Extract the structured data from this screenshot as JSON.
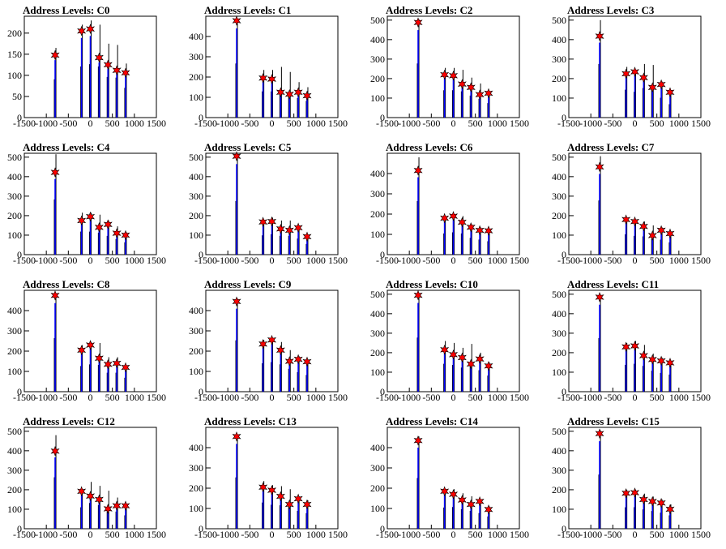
{
  "chart_data": [
    {
      "type": "bar",
      "title": "Address Levels: C0",
      "xlim": [
        -1500,
        1500
      ],
      "ylim": [
        0,
        240
      ],
      "yticks": [
        0,
        50,
        100,
        150,
        200
      ],
      "xticks": [
        -1500,
        -1000,
        -500,
        0,
        500,
        1000,
        1500
      ],
      "peaks": [
        {
          "x": -800,
          "hist": 165,
          "fit": 148
        },
        {
          "x": -200,
          "hist": 220,
          "fit": 205
        },
        {
          "x": 0,
          "hist": 230,
          "fit": 210
        },
        {
          "x": 200,
          "hist": 220,
          "fit": 142
        },
        {
          "x": 400,
          "hist": 175,
          "fit": 125
        },
        {
          "x": 600,
          "hist": 172,
          "fit": 112
        },
        {
          "x": 800,
          "hist": 128,
          "fit": 106
        }
      ]
    },
    {
      "type": "bar",
      "title": "Address Levels: C1",
      "xlim": [
        -1500,
        1500
      ],
      "ylim": [
        0,
        500
      ],
      "yticks": [
        0,
        100,
        200,
        300,
        400
      ],
      "xticks": [
        -1500,
        -1000,
        -500,
        0,
        500,
        1000,
        1500
      ],
      "peaks": [
        {
          "x": -800,
          "hist": 485,
          "fit": 478
        },
        {
          "x": -200,
          "hist": 235,
          "fit": 195
        },
        {
          "x": 0,
          "hist": 235,
          "fit": 190
        },
        {
          "x": 200,
          "hist": 250,
          "fit": 125
        },
        {
          "x": 400,
          "hist": 225,
          "fit": 115
        },
        {
          "x": 600,
          "hist": 175,
          "fit": 125
        },
        {
          "x": 800,
          "hist": 150,
          "fit": 108
        }
      ]
    },
    {
      "type": "bar",
      "title": "Address Levels: C2",
      "xlim": [
        -1500,
        1500
      ],
      "ylim": [
        0,
        520
      ],
      "yticks": [
        0,
        100,
        200,
        300,
        400,
        500
      ],
      "xticks": [
        -1500,
        -1000,
        -500,
        0,
        500,
        1000,
        1500
      ],
      "peaks": [
        {
          "x": -800,
          "hist": 505,
          "fit": 488
        },
        {
          "x": -200,
          "hist": 255,
          "fit": 220
        },
        {
          "x": 0,
          "hist": 255,
          "fit": 215
        },
        {
          "x": 200,
          "hist": 245,
          "fit": 172
        },
        {
          "x": 400,
          "hist": 205,
          "fit": 155
        },
        {
          "x": 600,
          "hist": 175,
          "fit": 118
        },
        {
          "x": 800,
          "hist": 135,
          "fit": 125
        }
      ]
    },
    {
      "type": "bar",
      "title": "Address Levels: C3",
      "xlim": [
        -1500,
        1500
      ],
      "ylim": [
        0,
        520
      ],
      "yticks": [
        0,
        100,
        200,
        300,
        400,
        500
      ],
      "xticks": [
        -1500,
        -1000,
        -500,
        0,
        500,
        1000,
        1500
      ],
      "peaks": [
        {
          "x": -800,
          "hist": 500,
          "fit": 418
        },
        {
          "x": -200,
          "hist": 260,
          "fit": 225
        },
        {
          "x": 0,
          "hist": 240,
          "fit": 235
        },
        {
          "x": 200,
          "hist": 275,
          "fit": 205
        },
        {
          "x": 400,
          "hist": 270,
          "fit": 155
        },
        {
          "x": 600,
          "hist": 185,
          "fit": 170
        },
        {
          "x": 800,
          "hist": 125,
          "fit": 130
        }
      ]
    },
    {
      "type": "bar",
      "title": "Address Levels: C4",
      "xlim": [
        -1500,
        1500
      ],
      "ylim": [
        0,
        520
      ],
      "yticks": [
        0,
        100,
        200,
        300,
        400,
        500
      ],
      "xticks": [
        -1500,
        -1000,
        -500,
        0,
        500,
        1000,
        1500
      ],
      "peaks": [
        {
          "x": -800,
          "hist": 515,
          "fit": 422
        },
        {
          "x": -200,
          "hist": 215,
          "fit": 175
        },
        {
          "x": 0,
          "hist": 215,
          "fit": 195
        },
        {
          "x": 200,
          "hist": 205,
          "fit": 140
        },
        {
          "x": 400,
          "hist": 175,
          "fit": 155
        },
        {
          "x": 600,
          "hist": 145,
          "fit": 110
        },
        {
          "x": 800,
          "hist": 115,
          "fit": 100
        }
      ]
    },
    {
      "type": "bar",
      "title": "Address Levels: C5",
      "xlim": [
        -1500,
        1500
      ],
      "ylim": [
        0,
        520
      ],
      "yticks": [
        0,
        100,
        200,
        300,
        400,
        500
      ],
      "xticks": [
        -1500,
        -1000,
        -500,
        0,
        500,
        1000,
        1500
      ],
      "peaks": [
        {
          "x": -800,
          "hist": 500,
          "fit": 505
        },
        {
          "x": -200,
          "hist": 180,
          "fit": 168
        },
        {
          "x": 0,
          "hist": 190,
          "fit": 170
        },
        {
          "x": 200,
          "hist": 175,
          "fit": 132
        },
        {
          "x": 400,
          "hist": 175,
          "fit": 125
        },
        {
          "x": 600,
          "hist": 150,
          "fit": 138
        },
        {
          "x": 800,
          "hist": 100,
          "fit": 92
        }
      ]
    },
    {
      "type": "bar",
      "title": "Address Levels: C6",
      "xlim": [
        -1500,
        1500
      ],
      "ylim": [
        0,
        500
      ],
      "yticks": [
        0,
        100,
        200,
        300,
        400
      ],
      "xticks": [
        -1500,
        -1000,
        -500,
        0,
        500,
        1000,
        1500
      ],
      "peaks": [
        {
          "x": -800,
          "hist": 480,
          "fit": 415
        },
        {
          "x": -200,
          "hist": 190,
          "fit": 180
        },
        {
          "x": 0,
          "hist": 200,
          "fit": 190
        },
        {
          "x": 200,
          "hist": 190,
          "fit": 160
        },
        {
          "x": 400,
          "hist": 150,
          "fit": 135
        },
        {
          "x": 600,
          "hist": 135,
          "fit": 120
        },
        {
          "x": 800,
          "hist": 120,
          "fit": 118
        }
      ]
    },
    {
      "type": "bar",
      "title": "Address Levels: C7",
      "xlim": [
        -1500,
        1500
      ],
      "ylim": [
        0,
        520
      ],
      "yticks": [
        0,
        100,
        200,
        300,
        400,
        500
      ],
      "xticks": [
        -1500,
        -1000,
        -500,
        0,
        500,
        1000,
        1500
      ],
      "peaks": [
        {
          "x": -800,
          "hist": 505,
          "fit": 450
        },
        {
          "x": -200,
          "hist": 190,
          "fit": 180
        },
        {
          "x": 0,
          "hist": 175,
          "fit": 170
        },
        {
          "x": 200,
          "hist": 170,
          "fit": 145
        },
        {
          "x": 400,
          "hist": 150,
          "fit": 98
        },
        {
          "x": 600,
          "hist": 140,
          "fit": 125
        },
        {
          "x": 800,
          "hist": 115,
          "fit": 108
        }
      ]
    },
    {
      "type": "bar",
      "title": "Address Levels: C8",
      "xlim": [
        -1500,
        1500
      ],
      "ylim": [
        0,
        500
      ],
      "yticks": [
        0,
        100,
        200,
        300,
        400
      ],
      "xticks": [
        -1500,
        -1000,
        -500,
        0,
        500,
        1000,
        1500
      ],
      "peaks": [
        {
          "x": -800,
          "hist": 480,
          "fit": 475
        },
        {
          "x": -200,
          "hist": 230,
          "fit": 205
        },
        {
          "x": 0,
          "hist": 245,
          "fit": 230
        },
        {
          "x": 200,
          "hist": 240,
          "fit": 165
        },
        {
          "x": 400,
          "hist": 170,
          "fit": 135
        },
        {
          "x": 600,
          "hist": 170,
          "fit": 140
        },
        {
          "x": 800,
          "hist": 125,
          "fit": 120
        }
      ]
    },
    {
      "type": "bar",
      "title": "Address Levels: C9",
      "xlim": [
        -1500,
        1500
      ],
      "ylim": [
        0,
        500
      ],
      "yticks": [
        0,
        100,
        200,
        300,
        400
      ],
      "xticks": [
        -1500,
        -1000,
        -500,
        0,
        500,
        1000,
        1500
      ],
      "peaks": [
        {
          "x": -800,
          "hist": 460,
          "fit": 445
        },
        {
          "x": -200,
          "hist": 255,
          "fit": 235
        },
        {
          "x": 0,
          "hist": 265,
          "fit": 255
        },
        {
          "x": 200,
          "hist": 245,
          "fit": 205
        },
        {
          "x": 400,
          "hist": 205,
          "fit": 150
        },
        {
          "x": 600,
          "hist": 175,
          "fit": 160
        },
        {
          "x": 800,
          "hist": 150,
          "fit": 148
        }
      ]
    },
    {
      "type": "bar",
      "title": "Address Levels: C10",
      "xlim": [
        -1500,
        1500
      ],
      "ylim": [
        0,
        520
      ],
      "yticks": [
        0,
        100,
        200,
        300,
        400,
        500
      ],
      "xticks": [
        -1500,
        -1000,
        -500,
        0,
        500,
        1000,
        1500
      ],
      "peaks": [
        {
          "x": -800,
          "hist": 505,
          "fit": 495
        },
        {
          "x": -200,
          "hist": 260,
          "fit": 215
        },
        {
          "x": 0,
          "hist": 250,
          "fit": 190
        },
        {
          "x": 200,
          "hist": 225,
          "fit": 175
        },
        {
          "x": 400,
          "hist": 245,
          "fit": 142
        },
        {
          "x": 600,
          "hist": 200,
          "fit": 168
        },
        {
          "x": 800,
          "hist": 150,
          "fit": 132
        }
      ]
    },
    {
      "type": "bar",
      "title": "Address Levels: C11",
      "xlim": [
        -1500,
        1500
      ],
      "ylim": [
        0,
        520
      ],
      "yticks": [
        0,
        100,
        200,
        300,
        400,
        500
      ],
      "xticks": [
        -1500,
        -1000,
        -500,
        0,
        500,
        1000,
        1500
      ],
      "peaks": [
        {
          "x": -800,
          "hist": 500,
          "fit": 485
        },
        {
          "x": -200,
          "hist": 250,
          "fit": 230
        },
        {
          "x": 0,
          "hist": 260,
          "fit": 235
        },
        {
          "x": 200,
          "hist": 240,
          "fit": 185
        },
        {
          "x": 400,
          "hist": 195,
          "fit": 165
        },
        {
          "x": 600,
          "hist": 175,
          "fit": 158
        },
        {
          "x": 800,
          "hist": 160,
          "fit": 148
        }
      ]
    },
    {
      "type": "bar",
      "title": "Address Levels: C12",
      "xlim": [
        -1500,
        1500
      ],
      "ylim": [
        0,
        520
      ],
      "yticks": [
        0,
        100,
        200,
        300,
        400,
        500
      ],
      "xticks": [
        -1500,
        -1000,
        -500,
        0,
        500,
        1000,
        1500
      ],
      "peaks": [
        {
          "x": -800,
          "hist": 480,
          "fit": 398
        },
        {
          "x": -200,
          "hist": 200,
          "fit": 192
        },
        {
          "x": 0,
          "hist": 240,
          "fit": 168
        },
        {
          "x": 200,
          "hist": 220,
          "fit": 150
        },
        {
          "x": 400,
          "hist": 195,
          "fit": 102
        },
        {
          "x": 600,
          "hist": 160,
          "fit": 118
        },
        {
          "x": 800,
          "hist": 125,
          "fit": 118
        }
      ]
    },
    {
      "type": "bar",
      "title": "Address Levels: C13",
      "xlim": [
        -1500,
        1500
      ],
      "ylim": [
        0,
        500
      ],
      "yticks": [
        0,
        100,
        200,
        300,
        400
      ],
      "xticks": [
        -1500,
        -1000,
        -500,
        0,
        500,
        1000,
        1500
      ],
      "peaks": [
        {
          "x": -800,
          "hist": 460,
          "fit": 455
        },
        {
          "x": -200,
          "hist": 235,
          "fit": 205
        },
        {
          "x": 0,
          "hist": 215,
          "fit": 190
        },
        {
          "x": 200,
          "hist": 210,
          "fit": 160
        },
        {
          "x": 400,
          "hist": 195,
          "fit": 120
        },
        {
          "x": 600,
          "hist": 160,
          "fit": 148
        },
        {
          "x": 800,
          "hist": 140,
          "fit": 120
        }
      ]
    },
    {
      "type": "bar",
      "title": "Address Levels: C14",
      "xlim": [
        -1500,
        1500
      ],
      "ylim": [
        0,
        500
      ],
      "yticks": [
        0,
        100,
        200,
        300,
        400
      ],
      "xticks": [
        -1500,
        -1000,
        -500,
        0,
        500,
        1000,
        1500
      ],
      "peaks": [
        {
          "x": -800,
          "hist": 455,
          "fit": 435
        },
        {
          "x": -200,
          "hist": 190,
          "fit": 185
        },
        {
          "x": 0,
          "hist": 195,
          "fit": 170
        },
        {
          "x": 200,
          "hist": 175,
          "fit": 142
        },
        {
          "x": 400,
          "hist": 160,
          "fit": 120
        },
        {
          "x": 600,
          "hist": 140,
          "fit": 135
        },
        {
          "x": 800,
          "hist": 110,
          "fit": 95
        }
      ]
    },
    {
      "type": "bar",
      "title": "Address Levels: C15",
      "xlim": [
        -1500,
        1500
      ],
      "ylim": [
        0,
        520
      ],
      "yticks": [
        0,
        100,
        200,
        300,
        400,
        500
      ],
      "xticks": [
        -1500,
        -1000,
        -500,
        0,
        500,
        1000,
        1500
      ],
      "peaks": [
        {
          "x": -800,
          "hist": 505,
          "fit": 488
        },
        {
          "x": -200,
          "hist": 200,
          "fit": 182
        },
        {
          "x": 0,
          "hist": 200,
          "fit": 185
        },
        {
          "x": 200,
          "hist": 180,
          "fit": 150
        },
        {
          "x": 400,
          "hist": 165,
          "fit": 140
        },
        {
          "x": 600,
          "hist": 150,
          "fit": 132
        },
        {
          "x": 800,
          "hist": 125,
          "fit": 100
        }
      ]
    }
  ],
  "colors": {
    "histogram": "#000000",
    "fit": "#0000ff",
    "marker": "#ff0000"
  }
}
